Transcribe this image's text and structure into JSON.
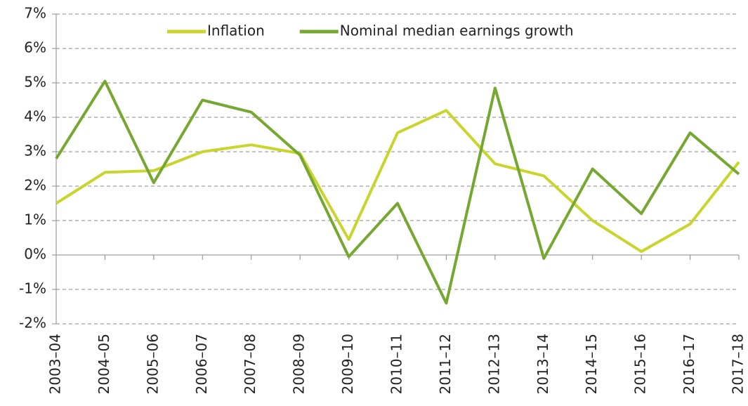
{
  "chart_data": {
    "type": "line",
    "categories": [
      "2003–04",
      "2004–05",
      "2005–06",
      "2006–07",
      "2007–08",
      "2008–09",
      "2009–10",
      "2010–11",
      "2011–12",
      "2012–13",
      "2013–14",
      "2014–15",
      "2015–16",
      "2016–17",
      "2017–18"
    ],
    "series": [
      {
        "name": "Inflation",
        "color": "#c9d52d",
        "values": [
          1.5,
          2.4,
          2.45,
          3.0,
          3.2,
          2.95,
          0.45,
          3.55,
          4.2,
          2.65,
          2.3,
          1.0,
          0.1,
          0.9,
          2.7
        ]
      },
      {
        "name": "Nominal median earnings growth",
        "color": "#76a730",
        "values": [
          2.8,
          5.05,
          2.1,
          4.5,
          4.15,
          2.9,
          -0.05,
          1.5,
          -1.4,
          4.85,
          -0.1,
          2.5,
          1.2,
          3.55,
          2.35
        ]
      }
    ],
    "ylim": [
      -2,
      7
    ],
    "yticks": [
      {
        "value": -2,
        "label": "-2%"
      },
      {
        "value": -1,
        "label": "-1%"
      },
      {
        "value": 0,
        "label": "0%"
      },
      {
        "value": 1,
        "label": "1%"
      },
      {
        "value": 2,
        "label": "2%"
      },
      {
        "value": 3,
        "label": "3%"
      },
      {
        "value": 4,
        "label": "4%"
      },
      {
        "value": 5,
        "label": "5%"
      },
      {
        "value": 6,
        "label": "6%"
      },
      {
        "value": 7,
        "label": "7%"
      }
    ],
    "grid": true,
    "legend": "top"
  }
}
